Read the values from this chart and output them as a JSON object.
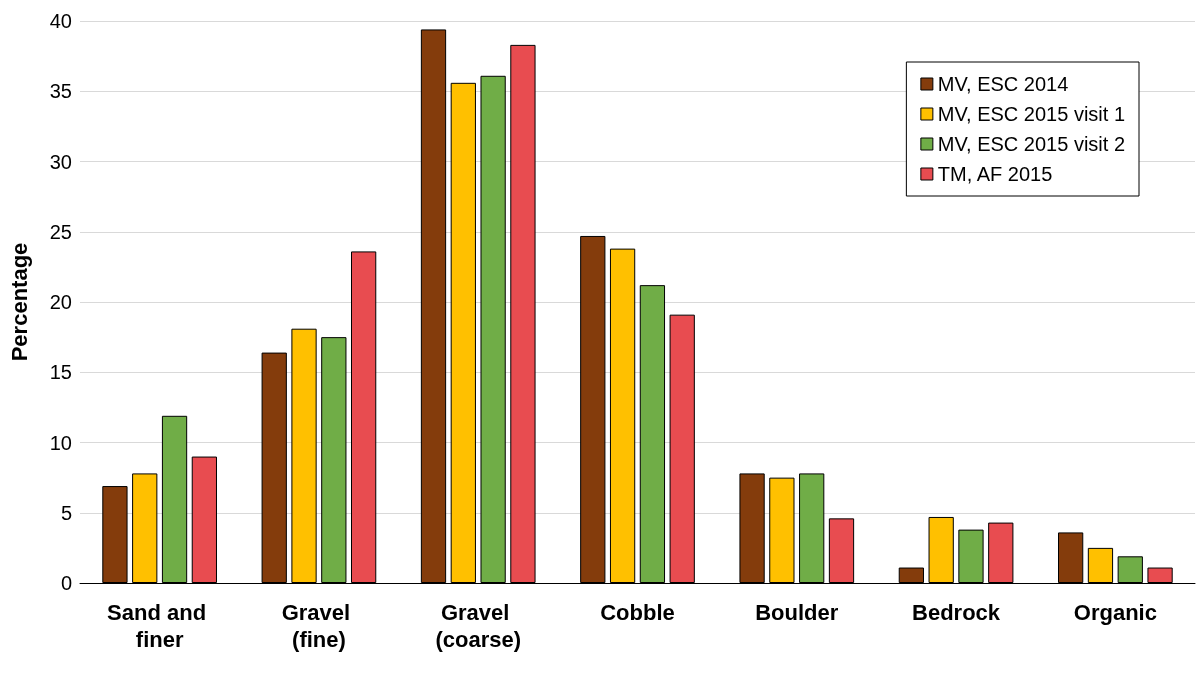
{
  "chart_data": {
    "type": "bar",
    "ylabel": "Percentage",
    "categories": [
      "Sand and finer",
      "Gravel (fine)",
      "Gravel (coarse)",
      "Cobble",
      "Boulder",
      "Bedrock",
      "Organic"
    ],
    "series": [
      {
        "name": "MV, ESC 2014",
        "color": "#843c0c",
        "values": [
          6.9,
          16.4,
          39.4,
          24.7,
          7.8,
          1.1,
          3.6
        ]
      },
      {
        "name": "MV, ESC 2015 visit 1",
        "color": "#ffc000",
        "values": [
          7.8,
          18.1,
          35.6,
          23.8,
          7.5,
          4.7,
          2.5
        ]
      },
      {
        "name": "MV, ESC 2015 visit 2",
        "color": "#70ad47",
        "values": [
          11.9,
          17.5,
          36.1,
          21.2,
          7.8,
          3.8,
          1.9
        ]
      },
      {
        "name": "TM, AF 2015",
        "color": "#e84c50",
        "values": [
          9.0,
          23.6,
          38.3,
          19.1,
          4.6,
          4.3,
          1.1
        ]
      }
    ],
    "ylim": [
      0,
      40
    ],
    "yticks": [
      0,
      5,
      10,
      15,
      20,
      25,
      30,
      35,
      40
    ],
    "grid": "y",
    "legend": "top right"
  }
}
